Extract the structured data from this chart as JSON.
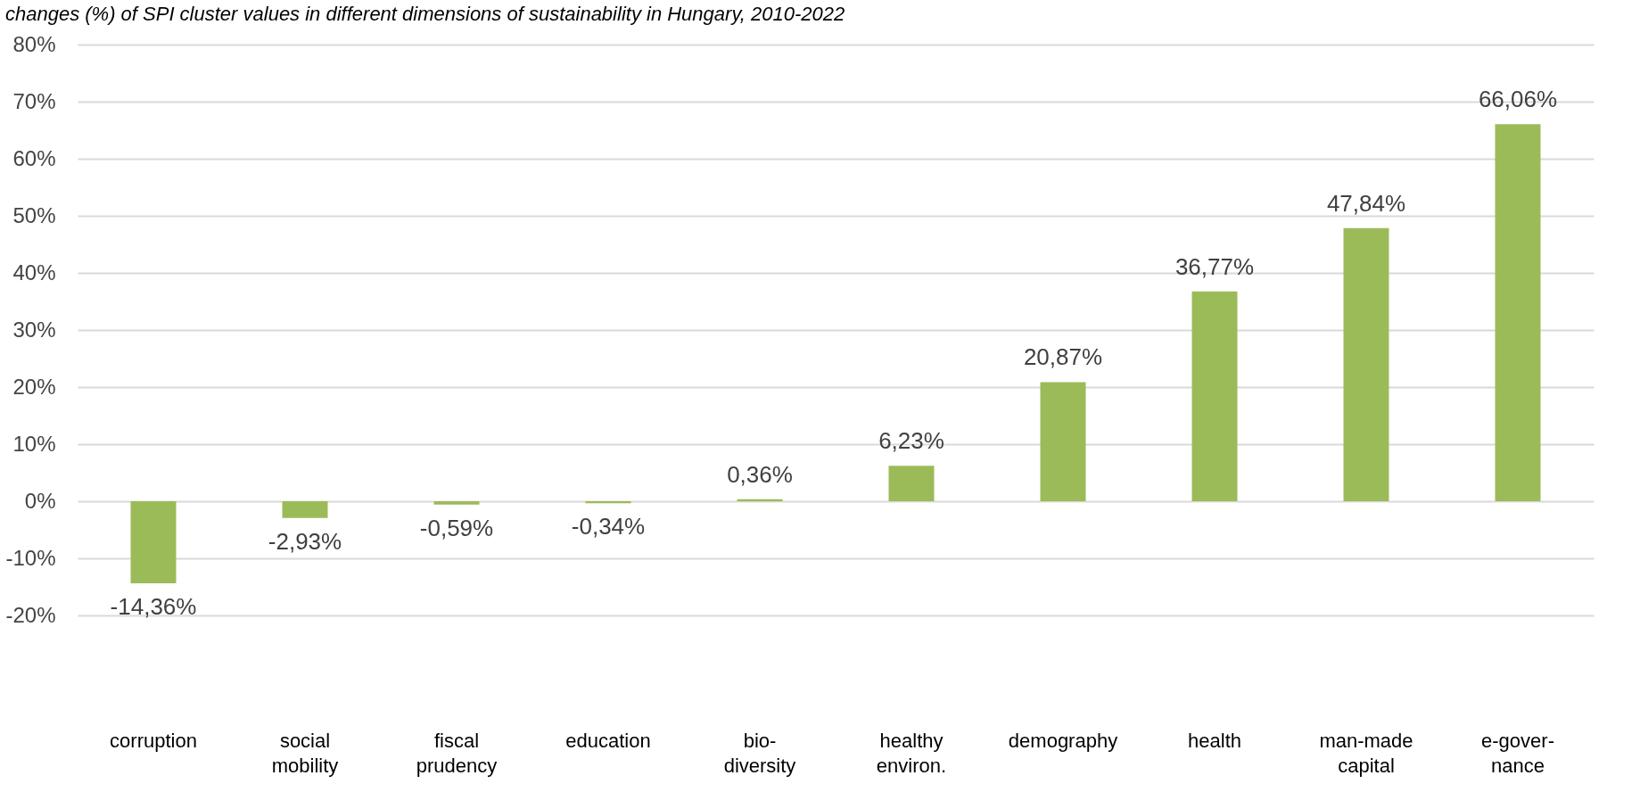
{
  "chart_data": {
    "type": "bar",
    "title": "changes (%) of SPI cluster values in different dimensions of sustainability in Hungary, 2010-2022",
    "categories": [
      "corruption",
      "social mobility",
      "fiscal prudency",
      "education",
      "bio-diversity",
      "healthy environ.",
      "demography",
      "health",
      "man-made capital",
      "e-gover-nance"
    ],
    "values": [
      -14.36,
      -2.93,
      -0.59,
      -0.34,
      0.36,
      6.23,
      20.87,
      36.77,
      47.84,
      66.06
    ],
    "value_labels": [
      "-14,36%",
      "-2,93%",
      "-0,59%",
      "-0,34%",
      "0,36%",
      "6,23%",
      "20,87%",
      "36,77%",
      "47,84%",
      "66,06%"
    ],
    "color": "#9bbb59",
    "ylim": [
      -20,
      80
    ],
    "yticks": [
      {
        "value": -20,
        "label": "-20%"
      },
      {
        "value": -10,
        "label": "-10%"
      },
      {
        "value": 0,
        "label": "0%"
      },
      {
        "value": 10,
        "label": "10%"
      },
      {
        "value": 20,
        "label": "20%"
      },
      {
        "value": 30,
        "label": "30%"
      },
      {
        "value": 40,
        "label": "40%"
      },
      {
        "value": 50,
        "label": "50%"
      },
      {
        "value": 60,
        "label": "60%"
      },
      {
        "value": 70,
        "label": "70%"
      },
      {
        "value": 80,
        "label": "80%"
      }
    ],
    "grid": "y"
  }
}
